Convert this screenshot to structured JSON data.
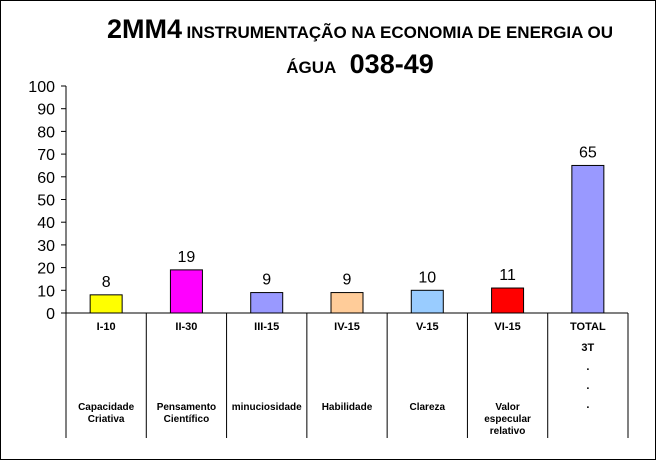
{
  "title": {
    "code": "2MM4",
    "text1": "INSTRUMENTAÇÃO NA ECONOMIA DE ENERGIA OU",
    "text2": "ÁGUA",
    "number": "038-49"
  },
  "chart_data": {
    "type": "bar",
    "categories": [
      "I-10",
      "II-30",
      "III-15",
      "IV-15",
      "V-15",
      "VI-15",
      "TOTAL"
    ],
    "sublabels": [
      [
        "Capacidade",
        "Criativa"
      ],
      [
        "Pensamento",
        "Científico"
      ],
      [
        "minuciosidade"
      ],
      [
        "Habilidade"
      ],
      [
        "Clareza"
      ],
      [
        "Valor",
        "especular",
        "relativo"
      ],
      []
    ],
    "total_extra": [
      "3T",
      ".",
      ".",
      "."
    ],
    "values": [
      8,
      19,
      9,
      9,
      10,
      11,
      65
    ],
    "colors": [
      "#ffff00",
      "#ff00ff",
      "#9999ff",
      "#ffcc99",
      "#99ccff",
      "#ff0000",
      "#9999ff"
    ],
    "ylim": [
      0,
      100
    ],
    "yticks": [
      0,
      10,
      20,
      30,
      40,
      50,
      60,
      70,
      80,
      90,
      100
    ],
    "title": "2MM4 INSTRUMENTAÇÃO NA ECONOMIA DE ENERGIA OU ÁGUA 038-49",
    "xlabel": "",
    "ylabel": "",
    "grid": false
  }
}
